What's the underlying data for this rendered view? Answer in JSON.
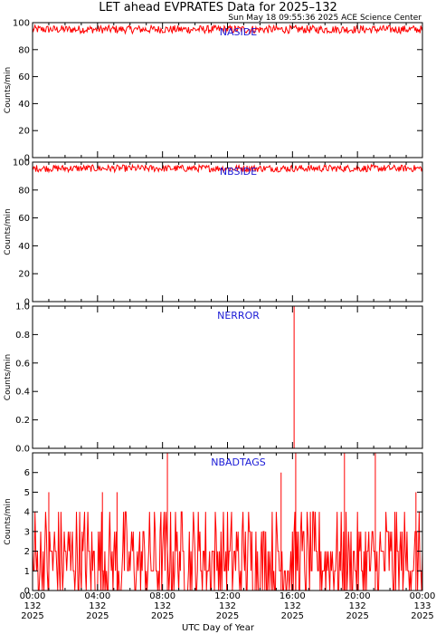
{
  "title": "LET ahead EVPRATES Data for 2025–132",
  "timestamp": "Sun May 18 09:55:36 2025 ACE Science Center",
  "xlabel": "UTC Day of Year",
  "colors": {
    "series": "#ff0000",
    "panel_label": "#1a1ad6",
    "axes": "#000000"
  },
  "x_ticks": [
    {
      "time": "00:00",
      "doy": "132",
      "year": "2025"
    },
    {
      "time": "04:00",
      "doy": "132",
      "year": "2025"
    },
    {
      "time": "08:00",
      "doy": "132",
      "year": "2025"
    },
    {
      "time": "12:00",
      "doy": "132",
      "year": "2025"
    },
    {
      "time": "16:00",
      "doy": "132",
      "year": "2025"
    },
    {
      "time": "20:00",
      "doy": "132",
      "year": "2025"
    },
    {
      "time": "00:00",
      "doy": "133",
      "year": "2025"
    }
  ],
  "chart_data": [
    {
      "type": "line",
      "panel": "NASIDE",
      "ylabel": "Counts/min",
      "ylim": [
        0,
        100
      ],
      "yticks": [
        "0",
        "20",
        "40",
        "60",
        "80",
        "100"
      ],
      "xlim_hours": [
        0,
        24
      ],
      "description": "noisy band",
      "band": {
        "low": 92,
        "high": 98
      },
      "spikes": []
    },
    {
      "type": "line",
      "panel": "NBSIDE",
      "ylabel": "Counts/min",
      "ylim": [
        0,
        100
      ],
      "yticks": [
        "0",
        "20",
        "40",
        "60",
        "80",
        "100"
      ],
      "xlim_hours": [
        0,
        24
      ],
      "description": "noisy band",
      "band": {
        "low": 93,
        "high": 98
      },
      "spikes": []
    },
    {
      "type": "line",
      "panel": "NERROR",
      "ylabel": "Counts/min",
      "ylim": [
        0,
        1
      ],
      "yticks": [
        "0.0",
        "0.2",
        "0.4",
        "0.6",
        "0.8",
        "1.0"
      ],
      "xlim_hours": [
        0,
        24
      ],
      "description": "zero with single spike",
      "band": {
        "low": 0,
        "high": 0
      },
      "spikes": [
        {
          "x": 16.1,
          "y": 1.0
        }
      ]
    },
    {
      "type": "line",
      "panel": "NBADTAGS",
      "ylabel": "Counts/min",
      "ylim": [
        0,
        7
      ],
      "yticks": [
        "0",
        "1",
        "2",
        "3",
        "4",
        "5",
        "6"
      ],
      "xlim_hours": [
        0,
        24
      ],
      "description": "integer counts mostly 0-4",
      "band": {
        "low": 0,
        "high": 4
      },
      "spikes": [
        {
          "x": 1.0,
          "y": 5
        },
        {
          "x": 4.3,
          "y": 5
        },
        {
          "x": 5.2,
          "y": 5
        },
        {
          "x": 8.3,
          "y": 7
        },
        {
          "x": 15.3,
          "y": 6
        },
        {
          "x": 16.2,
          "y": 7
        },
        {
          "x": 19.2,
          "y": 7
        },
        {
          "x": 21.1,
          "y": 7
        },
        {
          "x": 23.6,
          "y": 5
        }
      ]
    }
  ]
}
